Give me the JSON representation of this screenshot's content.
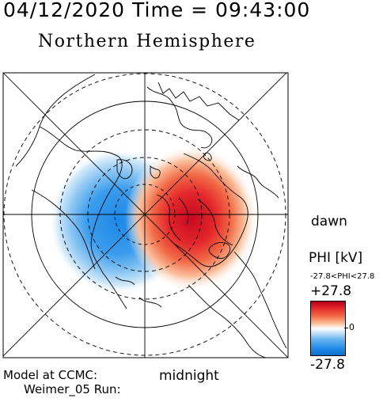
{
  "header": {
    "datetime": "04/12/2020 Time = 09:43:00",
    "hemisphere": "Northern Hemisphere"
  },
  "map": {
    "orientation_labels": {
      "right": "dawn",
      "bottom": "midnight"
    },
    "grid_latitudes_deg": [
      50,
      60,
      70,
      80
    ],
    "potential_cells": [
      {
        "sign": "positive",
        "color": "#e3262a",
        "side": "dawn"
      },
      {
        "sign": "negative",
        "color": "#1e88e6",
        "side": "dusk"
      }
    ]
  },
  "colorbar": {
    "title": "PHI [kV]",
    "range_text": "-27.8<PHI<27.8",
    "max_label": "+27.8",
    "zero_label": "0",
    "min_label": "-27.8",
    "max_color": "#b2001a",
    "min_color": "#0e6fcc"
  },
  "footer": {
    "model_label": "Model at CCMC:",
    "run_label": "Weimer_05 Run:"
  }
}
